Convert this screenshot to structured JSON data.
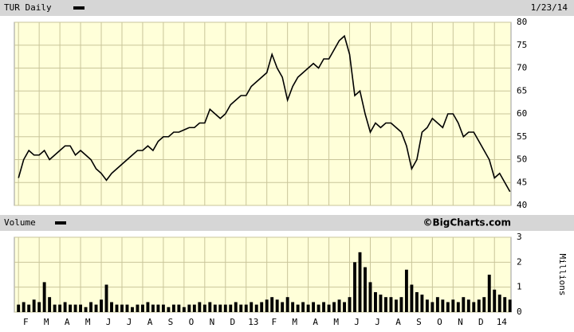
{
  "chart_data": [
    {
      "type": "line",
      "title": "TUR Daily",
      "date": "1/23/14",
      "color": "#000000",
      "xlim": [
        -0.2,
        23.8
      ],
      "xticks": [
        0,
        1,
        2,
        3,
        4,
        5,
        6,
        7,
        8,
        9,
        10,
        11,
        12,
        13,
        14,
        15,
        16,
        17,
        18,
        19,
        20,
        21,
        22,
        23
      ],
      "ylim": [
        40,
        80
      ],
      "yticks": [
        40,
        45,
        50,
        55,
        60,
        65,
        70,
        75,
        80
      ],
      "grid": true,
      "x": [
        0,
        0.25,
        0.5,
        0.75,
        1,
        1.25,
        1.5,
        1.75,
        2,
        2.25,
        2.5,
        2.75,
        3,
        3.25,
        3.5,
        3.75,
        4,
        4.25,
        4.5,
        4.75,
        5,
        5.25,
        5.5,
        5.75,
        6,
        6.25,
        6.5,
        6.75,
        7,
        7.25,
        7.5,
        7.75,
        8,
        8.25,
        8.5,
        8.75,
        9,
        9.25,
        9.5,
        9.75,
        10,
        10.25,
        10.5,
        10.75,
        11,
        11.25,
        11.5,
        11.75,
        12,
        12.25,
        12.5,
        12.75,
        13,
        13.25,
        13.5,
        13.75,
        14,
        14.25,
        14.5,
        14.75,
        15,
        15.25,
        15.5,
        15.75,
        16,
        16.25,
        16.5,
        16.75,
        17,
        17.25,
        17.5,
        17.75,
        18,
        18.25,
        18.5,
        18.75,
        19,
        19.25,
        19.5,
        19.75,
        20,
        20.25,
        20.5,
        20.75,
        21,
        21.25,
        21.5,
        21.75,
        22,
        22.25,
        22.5,
        22.75,
        23,
        23.25,
        23.5,
        23.75
      ],
      "values": [
        46,
        50,
        52,
        51,
        51,
        52,
        50,
        51,
        52,
        53,
        53,
        51,
        52,
        51,
        50,
        48,
        47,
        45.5,
        47,
        48,
        49,
        50,
        51,
        52,
        52,
        53,
        52,
        54,
        55,
        55,
        56,
        56,
        56.5,
        57,
        57,
        58,
        58,
        61,
        60,
        59,
        60,
        62,
        63,
        64,
        64,
        66,
        67,
        68,
        69,
        73,
        70,
        68,
        63,
        66,
        68,
        69,
        70,
        71,
        70,
        72,
        72,
        74,
        76,
        77,
        73,
        64,
        65,
        60,
        56,
        58,
        57,
        58,
        58,
        57,
        56,
        53,
        48,
        50,
        56,
        57,
        59,
        58,
        57,
        60,
        60,
        58,
        55,
        56,
        56,
        54,
        52,
        50,
        46,
        47,
        45,
        43
      ]
    },
    {
      "type": "bar",
      "title": "Volume",
      "annotation": "©BigCharts.com",
      "y_label": "Millions",
      "color": "#000000",
      "xlim": [
        -0.2,
        23.8
      ],
      "xticks": [
        {
          "value": 0,
          "label": "F"
        },
        {
          "value": 1,
          "label": "M"
        },
        {
          "value": 2,
          "label": "A"
        },
        {
          "value": 3,
          "label": "M"
        },
        {
          "value": 4,
          "label": "J"
        },
        {
          "value": 5,
          "label": "J"
        },
        {
          "value": 6,
          "label": "A"
        },
        {
          "value": 7,
          "label": "S"
        },
        {
          "value": 8,
          "label": "O"
        },
        {
          "value": 9,
          "label": "N"
        },
        {
          "value": 10,
          "label": "D"
        },
        {
          "value": 11,
          "label": "13"
        },
        {
          "value": 12,
          "label": "F"
        },
        {
          "value": 13,
          "label": "M"
        },
        {
          "value": 14,
          "label": "A"
        },
        {
          "value": 15,
          "label": "M"
        },
        {
          "value": 16,
          "label": "J"
        },
        {
          "value": 17,
          "label": "J"
        },
        {
          "value": 18,
          "label": "A"
        },
        {
          "value": 19,
          "label": "S"
        },
        {
          "value": 20,
          "label": "O"
        },
        {
          "value": 21,
          "label": "N"
        },
        {
          "value": 22,
          "label": "D"
        },
        {
          "value": 23,
          "label": "14"
        }
      ],
      "ylim": [
        0,
        3
      ],
      "yticks": [
        0,
        1,
        2,
        3
      ],
      "grid": true,
      "x": [
        0,
        0.25,
        0.5,
        0.75,
        1,
        1.25,
        1.5,
        1.75,
        2,
        2.25,
        2.5,
        2.75,
        3,
        3.25,
        3.5,
        3.75,
        4,
        4.25,
        4.5,
        4.75,
        5,
        5.25,
        5.5,
        5.75,
        6,
        6.25,
        6.5,
        6.75,
        7,
        7.25,
        7.5,
        7.75,
        8,
        8.25,
        8.5,
        8.75,
        9,
        9.25,
        9.5,
        9.75,
        10,
        10.25,
        10.5,
        10.75,
        11,
        11.25,
        11.5,
        11.75,
        12,
        12.25,
        12.5,
        12.75,
        13,
        13.25,
        13.5,
        13.75,
        14,
        14.25,
        14.5,
        14.75,
        15,
        15.25,
        15.5,
        15.75,
        16,
        16.25,
        16.5,
        16.75,
        17,
        17.25,
        17.5,
        17.75,
        18,
        18.25,
        18.5,
        18.75,
        19,
        19.25,
        19.5,
        19.75,
        20,
        20.25,
        20.5,
        20.75,
        21,
        21.25,
        21.5,
        21.75,
        22,
        22.25,
        22.5,
        22.75,
        23,
        23.25,
        23.5,
        23.75
      ],
      "values": [
        0.3,
        0.4,
        0.3,
        0.5,
        0.4,
        1.2,
        0.6,
        0.3,
        0.3,
        0.4,
        0.3,
        0.3,
        0.3,
        0.2,
        0.4,
        0.3,
        0.5,
        1.1,
        0.4,
        0.3,
        0.3,
        0.3,
        0.2,
        0.3,
        0.3,
        0.4,
        0.3,
        0.3,
        0.3,
        0.2,
        0.3,
        0.3,
        0.2,
        0.3,
        0.3,
        0.4,
        0.3,
        0.4,
        0.3,
        0.3,
        0.3,
        0.3,
        0.4,
        0.3,
        0.3,
        0.4,
        0.3,
        0.4,
        0.5,
        0.6,
        0.5,
        0.4,
        0.6,
        0.4,
        0.3,
        0.4,
        0.3,
        0.4,
        0.3,
        0.4,
        0.3,
        0.4,
        0.5,
        0.4,
        0.6,
        2.0,
        2.4,
        1.8,
        1.2,
        0.8,
        0.7,
        0.6,
        0.6,
        0.5,
        0.6,
        1.7,
        1.1,
        0.8,
        0.7,
        0.5,
        0.4,
        0.6,
        0.5,
        0.4,
        0.5,
        0.4,
        0.6,
        0.5,
        0.4,
        0.5,
        0.6,
        1.5,
        0.9,
        0.7,
        0.6,
        0.5
      ]
    }
  ]
}
